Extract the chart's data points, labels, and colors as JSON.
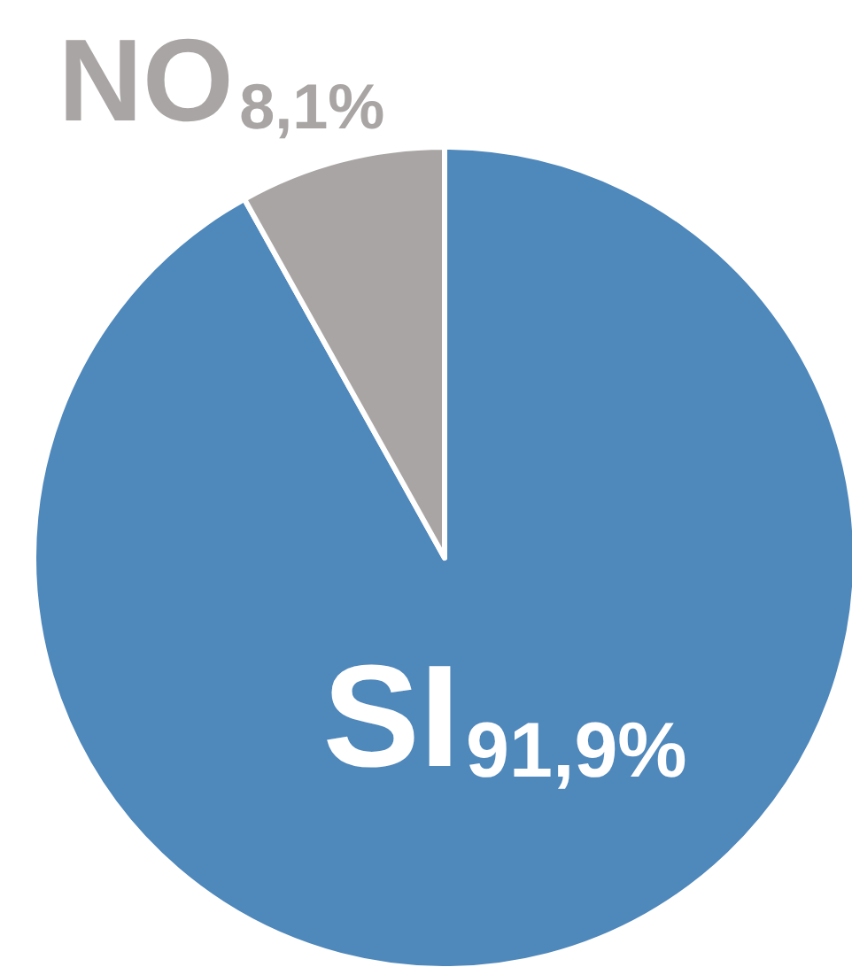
{
  "chart_data": {
    "type": "pie",
    "categories": [
      "SI",
      "NO"
    ],
    "values": [
      91.9,
      8.1
    ],
    "colors": [
      "#4f88bb",
      "#a9a5a4"
    ],
    "value_labels": [
      "91,9%",
      "8,1%"
    ],
    "legend": false
  }
}
